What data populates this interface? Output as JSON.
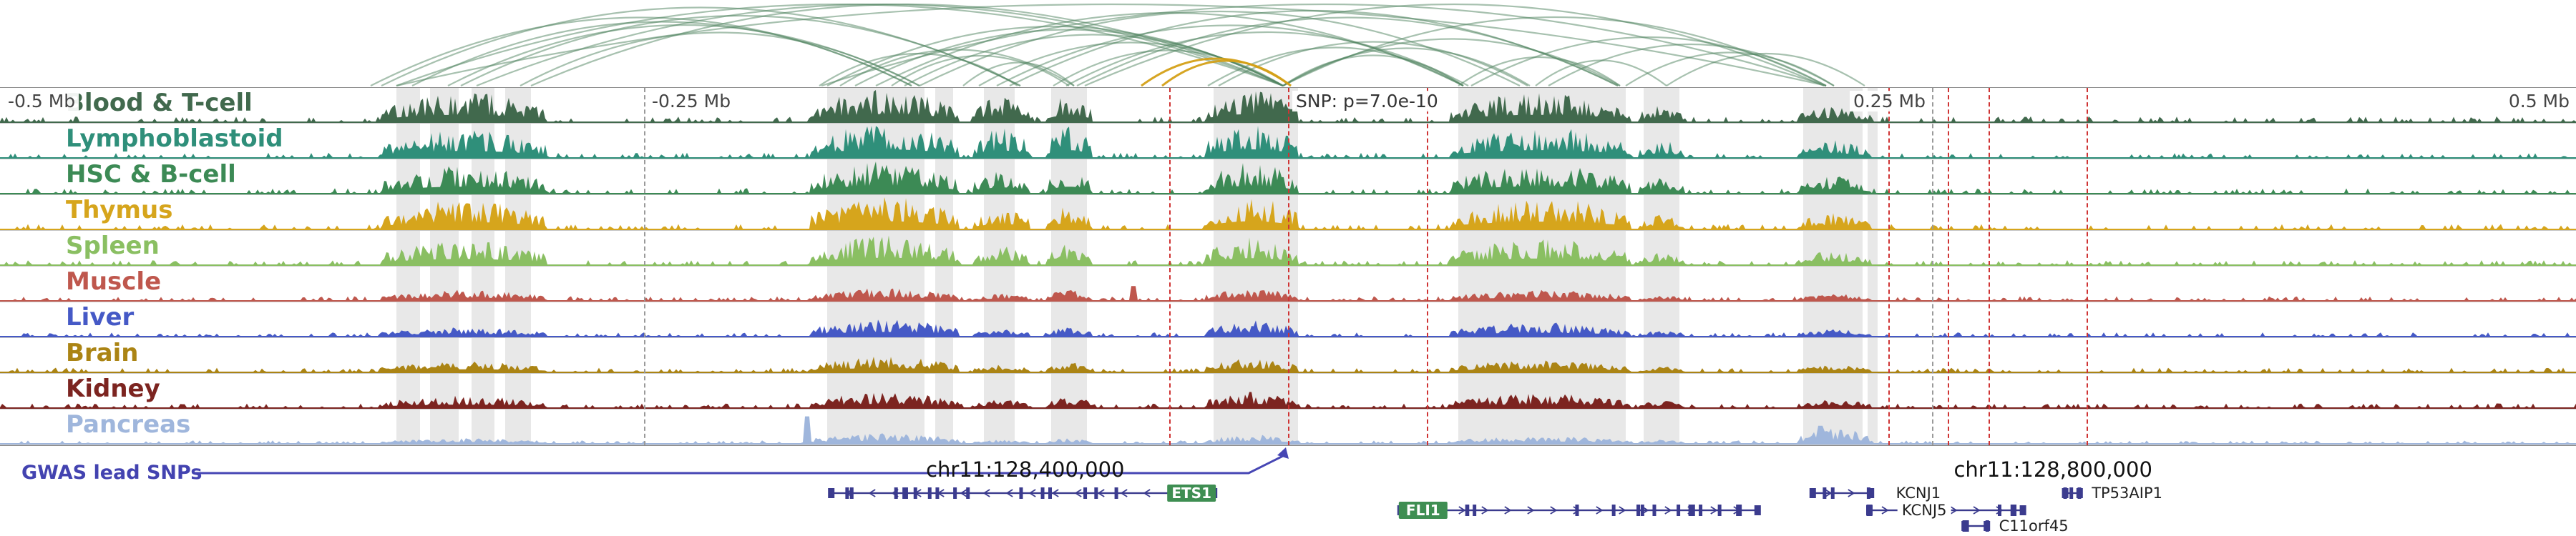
{
  "chart_data": {
    "type": "genome-tracks",
    "x_axis": {
      "domain_mb": [
        -0.5,
        0.5
      ],
      "labels": [
        {
          "text": "-0.5 Mb",
          "x_mb": -0.5,
          "anchor": "left"
        },
        {
          "text": "-0.25 Mb",
          "x_mb": -0.25,
          "anchor": "left"
        },
        {
          "text": "0.25 Mb",
          "x_mb": 0.25,
          "anchor": "right"
        },
        {
          "text": "0.5 Mb",
          "x_mb": 0.5,
          "anchor": "right"
        }
      ]
    },
    "snp": {
      "label": "SNP: p=7.0e-10",
      "pos_mb": 0.0
    },
    "red_dashed_mb": [
      -0.046,
      0.0,
      0.054,
      0.233,
      0.256,
      0.272,
      0.31
    ],
    "gray_dashed_mb": [
      -0.25,
      0.25
    ],
    "highlights_mb": [
      [
        -0.346,
        -0.337
      ],
      [
        -0.333,
        -0.322
      ],
      [
        -0.317,
        -0.308
      ],
      [
        -0.304,
        -0.294
      ],
      [
        -0.179,
        -0.141
      ],
      [
        -0.137,
        -0.13
      ],
      [
        -0.118,
        -0.106
      ],
      [
        -0.092,
        -0.078
      ],
      [
        -0.029,
        0.004
      ],
      [
        0.066,
        0.131
      ],
      [
        0.138,
        0.152
      ],
      [
        0.2,
        0.223
      ],
      [
        0.225,
        0.229
      ]
    ],
    "clusters_mb": [
      [
        -0.352,
        -0.288
      ],
      [
        -0.185,
        -0.128
      ],
      [
        -0.122,
        -0.1
      ],
      [
        -0.094,
        -0.076
      ],
      [
        -0.032,
        0.004
      ],
      [
        0.063,
        0.133
      ],
      [
        0.136,
        0.154
      ],
      [
        0.198,
        0.226
      ]
    ],
    "tracks": [
      {
        "label": "Blood & T-cell",
        "color": "#41694d",
        "noise": 0.13,
        "cluster_amps": [
          0.85,
          0.95,
          0.72,
          0.82,
          0.95,
          0.85,
          0.5,
          0.45
        ],
        "spikes": []
      },
      {
        "label": "Lymphoblastoid",
        "color": "#2f8f7a",
        "noise": 0.12,
        "cluster_amps": [
          0.8,
          1.0,
          0.85,
          0.9,
          1.0,
          0.9,
          0.5,
          0.5
        ],
        "spikes": []
      },
      {
        "label": "HSC & B-cell",
        "color": "#3c8a55",
        "noise": 0.12,
        "cluster_amps": [
          0.8,
          0.95,
          0.7,
          0.8,
          0.9,
          0.85,
          0.45,
          0.5
        ],
        "spikes": []
      },
      {
        "label": "Thymus",
        "color": "#d6a51c",
        "noise": 0.12,
        "cluster_amps": [
          0.85,
          0.95,
          0.6,
          0.7,
          0.95,
          0.9,
          0.4,
          0.45
        ],
        "spikes": []
      },
      {
        "label": "Spleen",
        "color": "#8abf62",
        "noise": 0.11,
        "cluster_amps": [
          0.7,
          0.85,
          0.55,
          0.6,
          0.8,
          0.75,
          0.35,
          0.4
        ],
        "spikes": []
      },
      {
        "label": "Muscle",
        "color": "#bf574d",
        "noise": 0.1,
        "cluster_amps": [
          0.3,
          0.35,
          0.2,
          0.3,
          0.35,
          0.3,
          0.15,
          0.2
        ],
        "spikes": [
          [
            -0.06,
            0.45
          ]
        ]
      },
      {
        "label": "Liver",
        "color": "#4559c6",
        "noise": 0.09,
        "cluster_amps": [
          0.25,
          0.5,
          0.2,
          0.25,
          0.45,
          0.4,
          0.15,
          0.2
        ],
        "spikes": []
      },
      {
        "label": "Brain",
        "color": "#ab8414",
        "noise": 0.1,
        "cluster_amps": [
          0.3,
          0.45,
          0.2,
          0.3,
          0.4,
          0.35,
          0.15,
          0.2
        ],
        "spikes": []
      },
      {
        "label": "Kidney",
        "color": "#7c2420",
        "noise": 0.1,
        "cluster_amps": [
          0.35,
          0.45,
          0.25,
          0.35,
          0.45,
          0.4,
          0.2,
          0.25
        ],
        "spikes": []
      },
      {
        "label": "Pancreas",
        "color": "#9fb6dc",
        "noise": 0.07,
        "cluster_amps": [
          0.15,
          0.3,
          0.1,
          0.15,
          0.25,
          0.2,
          0.1,
          0.45
        ],
        "spikes": [
          [
            -0.187,
            0.85
          ],
          [
            0.207,
            0.55
          ]
        ]
      }
    ],
    "arcs": {
      "green_color": "#4f8460",
      "gold_color": "#d4a017",
      "links": [
        [
          -0.356,
          -0.146,
          "green"
        ],
        [
          -0.352,
          -0.104,
          "green"
        ],
        [
          -0.346,
          -0.002,
          "green"
        ],
        [
          -0.34,
          -0.146,
          "green"
        ],
        [
          -0.326,
          -0.143,
          "green"
        ],
        [
          -0.321,
          -0.104,
          "green"
        ],
        [
          -0.315,
          -0.002,
          "green"
        ],
        [
          -0.298,
          -0.143,
          "green"
        ],
        [
          -0.294,
          -0.002,
          "green"
        ],
        [
          -0.182,
          -0.105,
          "green"
        ],
        [
          -0.179,
          -0.002,
          "green"
        ],
        [
          -0.174,
          -0.083,
          "green"
        ],
        [
          -0.168,
          -0.002,
          "green"
        ],
        [
          -0.16,
          0.068,
          "green"
        ],
        [
          -0.154,
          -0.085,
          "green"
        ],
        [
          -0.149,
          -0.002,
          "green"
        ],
        [
          -0.143,
          0.09,
          "green"
        ],
        [
          -0.126,
          -0.083,
          "green"
        ],
        [
          -0.12,
          -0.002,
          "green"
        ],
        [
          -0.113,
          0.068,
          "green"
        ],
        [
          -0.108,
          0.128,
          "green"
        ],
        [
          -0.091,
          -0.002,
          "green"
        ],
        [
          -0.086,
          0.07,
          "green"
        ],
        [
          -0.082,
          0.128,
          "green"
        ],
        [
          -0.079,
          0.208,
          "green"
        ],
        [
          -0.031,
          0.068,
          "green"
        ],
        [
          -0.027,
          0.093,
          "green"
        ],
        [
          -0.002,
          0.068,
          "green"
        ],
        [
          -0.002,
          0.094,
          "green"
        ],
        [
          -0.002,
          0.129,
          "green"
        ],
        [
          -0.002,
          0.209,
          "green"
        ],
        [
          0.066,
          0.129,
          "green"
        ],
        [
          0.071,
          0.209,
          "green"
        ],
        [
          0.096,
          0.147,
          "green"
        ],
        [
          0.101,
          0.212,
          "green"
        ],
        [
          0.131,
          0.212,
          "green"
        ],
        [
          0.147,
          0.224,
          "green"
        ],
        [
          -0.346,
          0.209,
          "green"
        ],
        [
          -0.181,
          0.209,
          "green"
        ],
        [
          -0.057,
          0.001,
          "gold"
        ],
        [
          -0.049,
          0.001,
          "gold"
        ]
      ]
    },
    "footer": {
      "gwas_label": "GWAS lead SNPs",
      "left_coord": "chr11:128,400,000",
      "left_coord_mb": -0.102,
      "right_coord": "chr11:128,800,000",
      "right_coord_mb": 0.297
    },
    "genes": [
      {
        "name": "ETS1",
        "start_mb": -0.178,
        "end_mb": -0.028,
        "row": 0,
        "strand": "-",
        "label": {
          "style": "box",
          "text": "ETS1",
          "anchor": "end"
        }
      },
      {
        "name": "FLI1",
        "start_mb": 0.043,
        "end_mb": 0.183,
        "row": 1,
        "strand": "+",
        "label": {
          "style": "box",
          "text": "FLI1",
          "anchor": "start"
        }
      },
      {
        "name": "KCNJ1",
        "start_mb": 0.203,
        "end_mb": 0.227,
        "row": 0,
        "strand": "+",
        "label": {
          "style": "text",
          "text": "KCNJ1",
          "at_mb": 0.236
        }
      },
      {
        "name": "KCNJ5",
        "start_mb": 0.225,
        "end_mb": 0.286,
        "row": 1,
        "strand": "+",
        "label": {
          "style": "text-mid",
          "text": "KCNJ5",
          "at_mb": 0.247
        }
      },
      {
        "name": "C11orf45",
        "start_mb": 0.262,
        "end_mb": 0.272,
        "row": 2,
        "strand": "+",
        "label": {
          "style": "text",
          "text": "C11orf45",
          "at_mb": 0.276
        }
      },
      {
        "name": "TP53AIP1",
        "start_mb": 0.301,
        "end_mb": 0.308,
        "row": 0,
        "strand": "-",
        "label": {
          "style": "text",
          "text": "TP53AIP1",
          "at_mb": 0.312
        }
      }
    ]
  }
}
